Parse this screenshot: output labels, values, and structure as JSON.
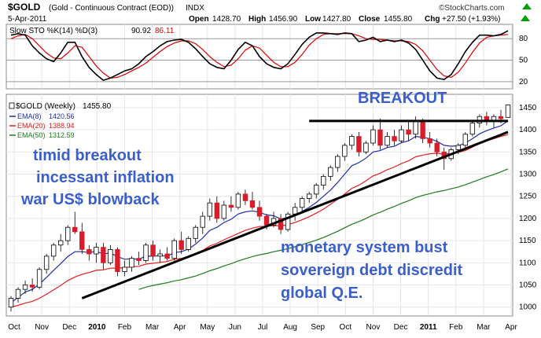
{
  "header": {
    "symbol": "$GOLD",
    "description": "(Gold - Continuous Contract (EOD))",
    "exchange": "INDX",
    "date": "5-Apr-2011",
    "open_label": "Open",
    "open": "1428.70",
    "high_label": "High",
    "high": "1456.90",
    "low_label": "Low",
    "low": "1427.80",
    "close_label": "Close",
    "close": "1455.80",
    "chg_label": "Chg",
    "chg": "+27.50 (+1.93%)",
    "brand": "©StockCharts.com",
    "up_arrow_color": "#00a000"
  },
  "stochastic": {
    "label": "Slow STO %K(14) %D(3)",
    "k_value": "90.92",
    "d_value": "86.11",
    "k_color": "#000000",
    "d_color": "#e00000",
    "ylim": [
      10,
      100
    ],
    "levels": [
      80,
      50,
      20
    ],
    "level_labels": [
      "80",
      "50",
      "20"
    ]
  },
  "legend": {
    "main": "$GOLD (Weekly)",
    "main_value": "1455.80",
    "ema8": "EMA(8)",
    "ema8_value": "1420.56",
    "ema20": "EMA(20)",
    "ema20_value": "1388.94",
    "ema50": "EMA(50)",
    "ema50_value": "1312.59"
  },
  "annotations": {
    "breakout": "BREAKOUT",
    "left_line1": "timid breakout",
    "left_line2": "incessant inflation",
    "left_line3": "war US$ blowback",
    "bottom_line1": "monetary system bust",
    "bottom_line2": "sovereign debt discredit",
    "bottom_line3": "global Q.E.",
    "text_color": "#3a5fcd",
    "bottom_color": "#2e8b2e"
  },
  "x_axis": {
    "labels": [
      "Oct",
      "Nov",
      "Dec",
      "2010",
      "Feb",
      "Mar",
      "Apr",
      "May",
      "Jun",
      "Jul",
      "Aug",
      "Sep",
      "Oct",
      "Nov",
      "Dec",
      "2011",
      "Feb",
      "Mar",
      "Apr"
    ],
    "bold": [
      "2010",
      "2011"
    ]
  },
  "chart_data": {
    "type": "candlestick",
    "title": "$GOLD (Weekly)",
    "ylim": [
      980,
      1480
    ],
    "yticks": [
      1000,
      1050,
      1100,
      1150,
      1200,
      1250,
      1300,
      1350,
      1400,
      1450
    ],
    "up_color": "#ffffff",
    "down_color": "#d81c2a",
    "ema8_color": "#1f2ea8",
    "ema20_color": "#e02020",
    "ema50_color": "#1e7a1e",
    "ohlc": [
      [
        1000,
        1025,
        990,
        1020
      ],
      [
        1020,
        1045,
        1010,
        1040
      ],
      [
        1040,
        1060,
        1030,
        1050
      ],
      [
        1050,
        1065,
        1035,
        1045
      ],
      [
        1045,
        1090,
        1040,
        1085
      ],
      [
        1085,
        1120,
        1075,
        1115
      ],
      [
        1115,
        1145,
        1105,
        1140
      ],
      [
        1140,
        1165,
        1125,
        1150
      ],
      [
        1150,
        1185,
        1140,
        1180
      ],
      [
        1180,
        1215,
        1165,
        1170
      ],
      [
        1170,
        1190,
        1120,
        1130
      ],
      [
        1130,
        1140,
        1105,
        1120
      ],
      [
        1120,
        1145,
        1100,
        1135
      ],
      [
        1135,
        1145,
        1085,
        1100
      ],
      [
        1100,
        1140,
        1095,
        1130
      ],
      [
        1130,
        1135,
        1070,
        1080
      ],
      [
        1080,
        1105,
        1070,
        1090
      ],
      [
        1090,
        1115,
        1080,
        1110
      ],
      [
        1110,
        1125,
        1095,
        1105
      ],
      [
        1105,
        1145,
        1100,
        1140
      ],
      [
        1140,
        1150,
        1105,
        1115
      ],
      [
        1115,
        1130,
        1100,
        1120
      ],
      [
        1120,
        1135,
        1105,
        1110
      ],
      [
        1110,
        1155,
        1105,
        1150
      ],
      [
        1150,
        1170,
        1120,
        1130
      ],
      [
        1130,
        1160,
        1125,
        1155
      ],
      [
        1155,
        1185,
        1145,
        1180
      ],
      [
        1180,
        1215,
        1165,
        1205
      ],
      [
        1205,
        1245,
        1195,
        1235
      ],
      [
        1235,
        1250,
        1190,
        1200
      ],
      [
        1200,
        1240,
        1195,
        1230
      ],
      [
        1230,
        1250,
        1215,
        1225
      ],
      [
        1225,
        1260,
        1220,
        1255
      ],
      [
        1255,
        1265,
        1230,
        1240
      ],
      [
        1240,
        1260,
        1220,
        1225
      ],
      [
        1225,
        1240,
        1195,
        1205
      ],
      [
        1205,
        1210,
        1175,
        1185
      ],
      [
        1185,
        1215,
        1180,
        1200
      ],
      [
        1200,
        1210,
        1165,
        1175
      ],
      [
        1175,
        1215,
        1170,
        1210
      ],
      [
        1210,
        1235,
        1195,
        1225
      ],
      [
        1225,
        1250,
        1215,
        1245
      ],
      [
        1245,
        1260,
        1235,
        1255
      ],
      [
        1255,
        1280,
        1245,
        1275
      ],
      [
        1275,
        1300,
        1265,
        1295
      ],
      [
        1295,
        1320,
        1285,
        1315
      ],
      [
        1315,
        1345,
        1305,
        1340
      ],
      [
        1340,
        1370,
        1330,
        1365
      ],
      [
        1365,
        1390,
        1355,
        1385
      ],
      [
        1385,
        1395,
        1340,
        1350
      ],
      [
        1350,
        1375,
        1345,
        1370
      ],
      [
        1370,
        1410,
        1365,
        1400
      ],
      [
        1400,
        1425,
        1355,
        1365
      ],
      [
        1365,
        1395,
        1360,
        1385
      ],
      [
        1385,
        1400,
        1365,
        1375
      ],
      [
        1375,
        1410,
        1370,
        1400
      ],
      [
        1400,
        1420,
        1375,
        1390
      ],
      [
        1390,
        1430,
        1380,
        1420
      ],
      [
        1420,
        1425,
        1370,
        1380
      ],
      [
        1380,
        1395,
        1360,
        1370
      ],
      [
        1370,
        1380,
        1340,
        1350
      ],
      [
        1350,
        1360,
        1310,
        1335
      ],
      [
        1335,
        1360,
        1330,
        1355
      ],
      [
        1355,
        1370,
        1345,
        1365
      ],
      [
        1365,
        1395,
        1360,
        1390
      ],
      [
        1390,
        1420,
        1385,
        1415
      ],
      [
        1415,
        1435,
        1405,
        1430
      ],
      [
        1430,
        1440,
        1410,
        1420
      ],
      [
        1420,
        1435,
        1405,
        1430
      ],
      [
        1430,
        1445,
        1415,
        1425
      ],
      [
        1428,
        1457,
        1427,
        1456
      ]
    ],
    "ema8": [
      1010,
      1022,
      1034,
      1040,
      1052,
      1067,
      1083,
      1098,
      1114,
      1125,
      1125,
      1123,
      1126,
      1120,
      1122,
      1114,
      1108,
      1109,
      1108,
      1115,
      1115,
      1116,
      1115,
      1123,
      1125,
      1131,
      1142,
      1156,
      1173,
      1180,
      1191,
      1198,
      1210,
      1215,
      1217,
      1214,
      1208,
      1206,
      1199,
      1202,
      1207,
      1216,
      1225,
      1236,
      1250,
      1264,
      1281,
      1300,
      1319,
      1326,
      1336,
      1350,
      1353,
      1360,
      1363,
      1371,
      1375,
      1385,
      1383,
      1380,
      1374,
      1365,
      1363,
      1364,
      1370,
      1380,
      1391,
      1398,
      1404,
      1409,
      1420
    ],
    "ema20": [
      1000,
      1004,
      1009,
      1013,
      1020,
      1029,
      1039,
      1049,
      1060,
      1068,
      1074,
      1078,
      1083,
      1084,
      1088,
      1088,
      1089,
      1091,
      1092,
      1097,
      1099,
      1101,
      1103,
      1108,
      1110,
      1114,
      1120,
      1128,
      1138,
      1144,
      1152,
      1159,
      1166,
      1173,
      1178,
      1182,
      1182,
      1184,
      1183,
      1186,
      1191,
      1197,
      1204,
      1212,
      1221,
      1232,
      1243,
      1255,
      1268,
      1275,
      1285,
      1296,
      1302,
      1310,
      1316,
      1324,
      1330,
      1339,
      1343,
      1346,
      1347,
      1345,
      1347,
      1349,
      1353,
      1361,
      1369,
      1375,
      1380,
      1385,
      1389
    ],
    "ema50": [
      null,
      null,
      null,
      null,
      null,
      null,
      null,
      null,
      null,
      null,
      null,
      null,
      null,
      null,
      null,
      null,
      null,
      null,
      1040,
      1045,
      1049,
      1052,
      1055,
      1059,
      1062,
      1066,
      1070,
      1076,
      1082,
      1087,
      1093,
      1098,
      1104,
      1109,
      1114,
      1118,
      1121,
      1125,
      1128,
      1132,
      1136,
      1141,
      1146,
      1151,
      1157,
      1164,
      1171,
      1179,
      1187,
      1193,
      1200,
      1208,
      1214,
      1221,
      1227,
      1234,
      1240,
      1247,
      1252,
      1256,
      1260,
      1263,
      1267,
      1271,
      1276,
      1282,
      1288,
      1294,
      1299,
      1305,
      1312
    ],
    "stoch_k": [
      85,
      87,
      85,
      70,
      60,
      52,
      48,
      60,
      75,
      75,
      55,
      40,
      30,
      22,
      25,
      30,
      35,
      38,
      45,
      55,
      62,
      70,
      76,
      78,
      79,
      75,
      66,
      55,
      45,
      40,
      38,
      50,
      65,
      75,
      70,
      55,
      45,
      40,
      38,
      45,
      58,
      72,
      82,
      88,
      88,
      87,
      86,
      88,
      87,
      76,
      78,
      82,
      76,
      78,
      76,
      78,
      74,
      65,
      50,
      35,
      25,
      23,
      30,
      45,
      62,
      75,
      85,
      85,
      84,
      86,
      91
    ],
    "stoch_d": [
      80,
      84,
      86,
      80,
      70,
      60,
      53,
      52,
      60,
      70,
      68,
      55,
      42,
      32,
      25,
      26,
      30,
      35,
      40,
      46,
      54,
      62,
      69,
      74,
      77,
      77,
      73,
      65,
      55,
      47,
      41,
      43,
      52,
      64,
      70,
      67,
      57,
      47,
      41,
      41,
      47,
      58,
      71,
      80,
      86,
      87,
      87,
      87,
      87,
      84,
      80,
      79,
      79,
      78,
      77,
      77,
      76,
      72,
      63,
      50,
      37,
      28,
      26,
      33,
      46,
      61,
      74,
      82,
      84,
      85,
      86
    ],
    "resistance": {
      "from_week": 42,
      "to_week": 70,
      "value": 1420
    },
    "support": {
      "from_week": 10,
      "to_week": 70,
      "from_value": 1020,
      "to_value": 1395
    }
  }
}
